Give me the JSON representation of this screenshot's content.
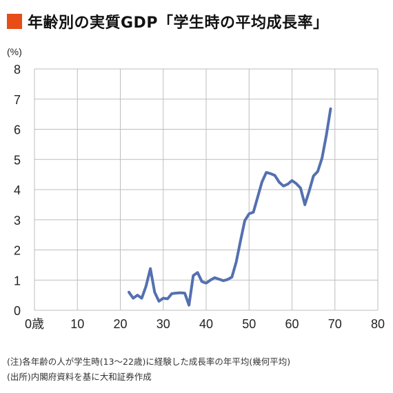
{
  "title": "年齢別の実質GDP「学生時の平均成長率」",
  "accent_color": "#e84c17",
  "line_color": "#5470b0",
  "notes": [
    "(注)各年齢の人が学生時(13〜22歳)に経験した成長率の年平均(幾何平均)",
    "(出所)内閣府資料を基に大和証券作成"
  ],
  "chart_data": {
    "type": "line",
    "y_unit_label": "(%)",
    "xlim": [
      0,
      80
    ],
    "ylim": [
      0,
      8
    ],
    "x_ticks": [
      0,
      10,
      20,
      30,
      40,
      50,
      60,
      70,
      80
    ],
    "x_tick_labels": [
      "0歳",
      "10",
      "20",
      "30",
      "40",
      "50",
      "60",
      "70",
      "80"
    ],
    "y_ticks": [
      0,
      1,
      2,
      3,
      4,
      5,
      6,
      7,
      8
    ],
    "y_tick_labels": [
      "0",
      "1",
      "2",
      "3",
      "4",
      "5",
      "6",
      "7",
      "8"
    ],
    "grid": true,
    "series": [
      {
        "x": [
          22,
          23,
          24,
          25,
          26,
          27,
          28,
          29,
          30,
          31,
          32,
          33,
          34,
          35,
          36,
          37,
          38,
          39,
          40,
          41,
          42,
          43,
          44,
          45,
          46,
          47,
          48,
          49,
          50,
          51,
          52,
          53,
          54,
          55,
          56,
          57,
          58,
          59,
          60,
          61,
          62,
          63,
          64,
          65,
          66,
          67,
          68,
          69
        ],
        "y": [
          0.6,
          0.4,
          0.5,
          0.4,
          0.8,
          1.38,
          0.6,
          0.3,
          0.4,
          0.38,
          0.55,
          0.57,
          0.58,
          0.57,
          0.17,
          1.15,
          1.25,
          0.95,
          0.9,
          1.0,
          1.08,
          1.03,
          0.98,
          1.02,
          1.1,
          1.6,
          2.3,
          2.97,
          3.2,
          3.25,
          3.75,
          4.25,
          4.57,
          4.53,
          4.47,
          4.25,
          4.12,
          4.18,
          4.3,
          4.2,
          4.05,
          3.5,
          3.95,
          4.45,
          4.6,
          5.05,
          5.8,
          6.68
        ]
      }
    ]
  }
}
